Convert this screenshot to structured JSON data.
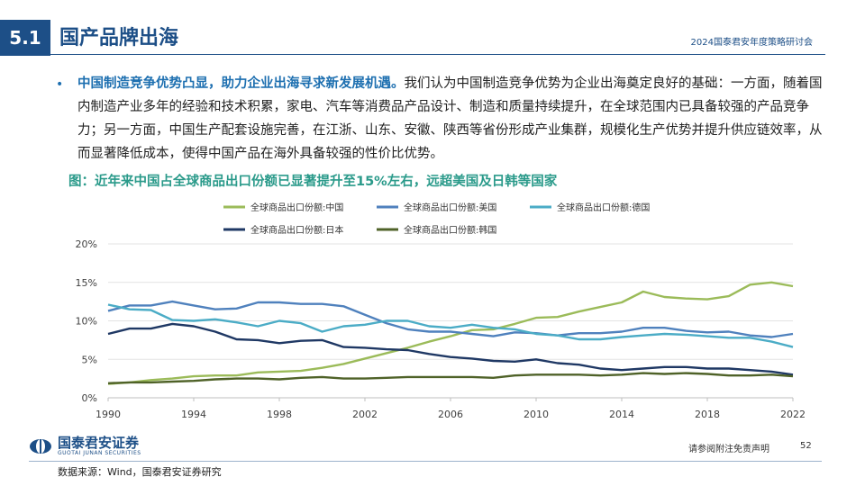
{
  "header": {
    "section_number": "5.1",
    "title": "国产品牌出海",
    "conference": "2024国泰君安年度策略研讨会"
  },
  "body": {
    "lead": "中国制造竞争优势凸显，助力企业出海寻求新发展机遇。",
    "text": "我们认为中国制造竞争优势为企业出海奠定良好的基础：一方面，随着国内制造产业多年的经验和技术积累，家电、汽车等消费品产品设计、制造和质量持续提升，在全球范围内已具备较强的产品竞争力；另一方面，中国生产配套设施完善，在江浙、山东、安徽、陕西等省份形成产业集群，规模化生产优势并提升供应链效率，从而显著降低成本，使得中国产品在海外具备较强的性价比优势。"
  },
  "figure_caption": "图：近年来中国占全球商品出口份额已显著提升至15%左右，远超美国及日韩等国家",
  "footer": {
    "company": "国泰君安证券",
    "company_en": "GUOTAI JUNAN SECURITIES",
    "disclaimer": "请参阅附注免责声明",
    "page_number": "52",
    "source": "数据来源：Wind，国泰君安证券研究"
  },
  "chart_data": {
    "type": "line",
    "x": [
      1990,
      1991,
      1992,
      1993,
      1994,
      1995,
      1996,
      1997,
      1998,
      1999,
      2000,
      2001,
      2002,
      2003,
      2004,
      2005,
      2006,
      2007,
      2008,
      2009,
      2010,
      2011,
      2012,
      2013,
      2014,
      2015,
      2016,
      2017,
      2018,
      2019,
      2020,
      2021,
      2022
    ],
    "xticks": [
      "1990",
      "1994",
      "1998",
      "2002",
      "2006",
      "2010",
      "2014",
      "2018",
      "2022"
    ],
    "yticks": [
      "0%",
      "5%",
      "10%",
      "15%",
      "20%"
    ],
    "ylim": [
      0,
      20
    ],
    "grid": "horizontal",
    "legend_position": "top",
    "series": [
      {
        "name": "全球商品出口份额:中国",
        "color": "#9bbb59",
        "values": [
          1.8,
          2.0,
          2.3,
          2.5,
          2.8,
          2.9,
          2.9,
          3.3,
          3.4,
          3.5,
          3.9,
          4.4,
          5.1,
          5.8,
          6.5,
          7.3,
          8.0,
          8.8,
          8.9,
          9.6,
          10.4,
          10.5,
          11.2,
          11.8,
          12.4,
          13.8,
          13.1,
          12.9,
          12.8,
          13.2,
          14.7,
          15.0,
          14.5
        ]
      },
      {
        "name": "全球商品出口份额:美国",
        "color": "#4f81bd",
        "values": [
          11.3,
          12.0,
          12.0,
          12.5,
          12.0,
          11.5,
          11.6,
          12.4,
          12.4,
          12.2,
          12.2,
          11.9,
          10.8,
          9.7,
          8.9,
          8.6,
          8.6,
          8.3,
          8.0,
          8.5,
          8.4,
          8.1,
          8.4,
          8.4,
          8.6,
          9.1,
          9.1,
          8.7,
          8.5,
          8.6,
          8.1,
          7.9,
          8.3
        ]
      },
      {
        "name": "全球商品出口份额:德国",
        "color": "#4bacc6",
        "values": [
          12.1,
          11.5,
          11.4,
          10.1,
          10.0,
          10.2,
          9.8,
          9.3,
          10.0,
          9.7,
          8.6,
          9.3,
          9.5,
          10.0,
          10.0,
          9.3,
          9.1,
          9.5,
          9.1,
          8.9,
          8.3,
          8.1,
          7.6,
          7.6,
          7.9,
          8.1,
          8.3,
          8.2,
          8.0,
          7.8,
          7.8,
          7.3,
          6.6
        ]
      },
      {
        "name": "全球商品出口份额:日本",
        "color": "#1f3864",
        "values": [
          8.3,
          9.0,
          9.0,
          9.6,
          9.3,
          8.6,
          7.6,
          7.5,
          7.1,
          7.4,
          7.5,
          6.6,
          6.5,
          6.3,
          6.2,
          5.7,
          5.3,
          5.1,
          4.8,
          4.7,
          5.0,
          4.5,
          4.3,
          3.8,
          3.6,
          3.8,
          4.0,
          4.0,
          3.8,
          3.8,
          3.6,
          3.4,
          3.0
        ]
      },
      {
        "name": "全球商品出口份额:韩国",
        "color": "#4f6228",
        "values": [
          1.9,
          2.0,
          2.0,
          2.1,
          2.2,
          2.4,
          2.5,
          2.5,
          2.4,
          2.6,
          2.7,
          2.5,
          2.5,
          2.6,
          2.7,
          2.7,
          2.7,
          2.7,
          2.6,
          2.9,
          3.0,
          3.0,
          3.0,
          2.9,
          3.0,
          3.2,
          3.1,
          3.2,
          3.1,
          2.9,
          2.9,
          3.0,
          2.8
        ]
      }
    ]
  }
}
